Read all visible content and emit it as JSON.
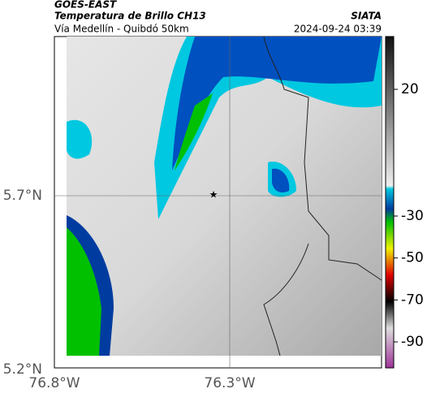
{
  "header": {
    "satellite": "GOES-EAST",
    "product": "Temperatura de Brillo CH13",
    "source": "SIATA",
    "route": "Vía Medellín - Quibdó 50km",
    "timestamp": "2024-09-24 03:39"
  },
  "axes": {
    "lat_labels": [
      "5.7°N",
      "5.2°N"
    ],
    "lon_labels": [
      "76.8°W",
      "76.3°W"
    ]
  },
  "colorbar": {
    "ticks": [
      20,
      -30,
      -50,
      -70,
      -90
    ]
  }
}
